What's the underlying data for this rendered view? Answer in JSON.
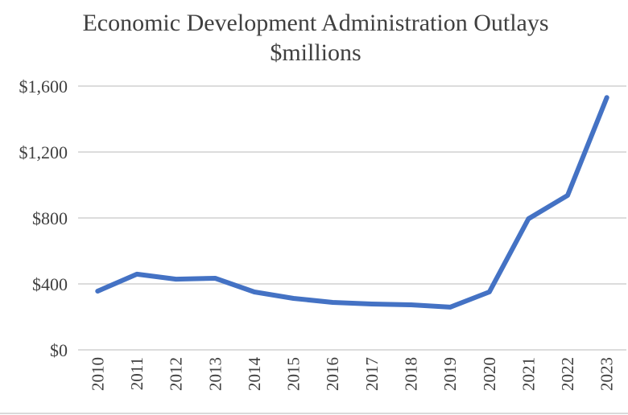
{
  "chart_data": {
    "type": "line",
    "title": "Economic Development Administration Outlays",
    "subtitle": "$millions",
    "xlabel": "",
    "ylabel": "",
    "categories": [
      "2010",
      "2011",
      "2012",
      "2013",
      "2014",
      "2015",
      "2016",
      "2017",
      "2018",
      "2019",
      "2020",
      "2021",
      "2022",
      "2023"
    ],
    "series": [
      {
        "name": "Outlays",
        "color": "#4472c4",
        "values": [
          356,
          459,
          429,
          434,
          351,
          312,
          288,
          278,
          273,
          259,
          351,
          795,
          937,
          1530
        ]
      }
    ],
    "ylim": [
      0,
      1600
    ],
    "yticks": [
      0,
      400,
      800,
      1200,
      1600
    ],
    "ytick_labels": [
      "$0",
      "$400",
      "$800",
      "$1,200",
      "$1,600"
    ],
    "grid": true,
    "legend": "none"
  }
}
